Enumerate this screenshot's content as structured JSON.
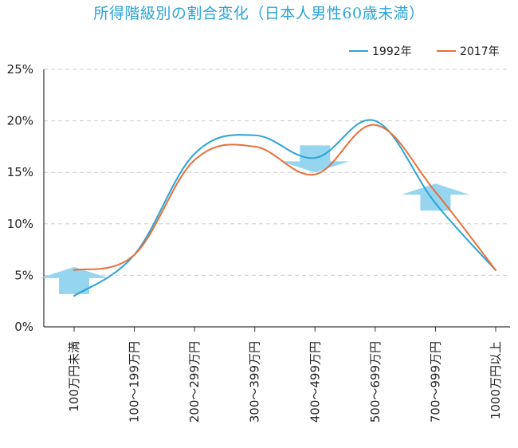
{
  "colors": {
    "title": "#2aa3d8",
    "series_1992": "#2aa3d8",
    "series_2017": "#e8703a",
    "arrow": "#8fd3ef",
    "grid": "#cccccc",
    "axis": "#333333"
  },
  "chart_data": {
    "type": "line",
    "title": "所得階級別の割合変化（日本人男性60歳未満）",
    "categories": [
      "100万円未満",
      "100〜199万円",
      "200〜299万円",
      "300〜399万円",
      "400〜499万円",
      "500〜699万円",
      "700〜999万円",
      "1000万円以上"
    ],
    "series": [
      {
        "name": "1992年",
        "values": [
          3.0,
          7.0,
          16.8,
          18.6,
          16.4,
          20.0,
          12.0,
          5.5
        ]
      },
      {
        "name": "2017年",
        "values": [
          5.5,
          7.0,
          16.2,
          17.5,
          14.8,
          19.6,
          13.1,
          5.5
        ]
      }
    ],
    "yticks": [
      "0%",
      "5%",
      "10%",
      "15%",
      "20%",
      "25%"
    ],
    "ylim": [
      0,
      25
    ],
    "grid": true,
    "legend_position": "top-right",
    "annotations": [
      {
        "category": "100万円未満",
        "direction": "up",
        "level": 4.5
      },
      {
        "category": "400〜499万円",
        "direction": "down",
        "level": 16.3
      },
      {
        "category": "700〜999万円",
        "direction": "up",
        "level": 12.6
      }
    ]
  }
}
